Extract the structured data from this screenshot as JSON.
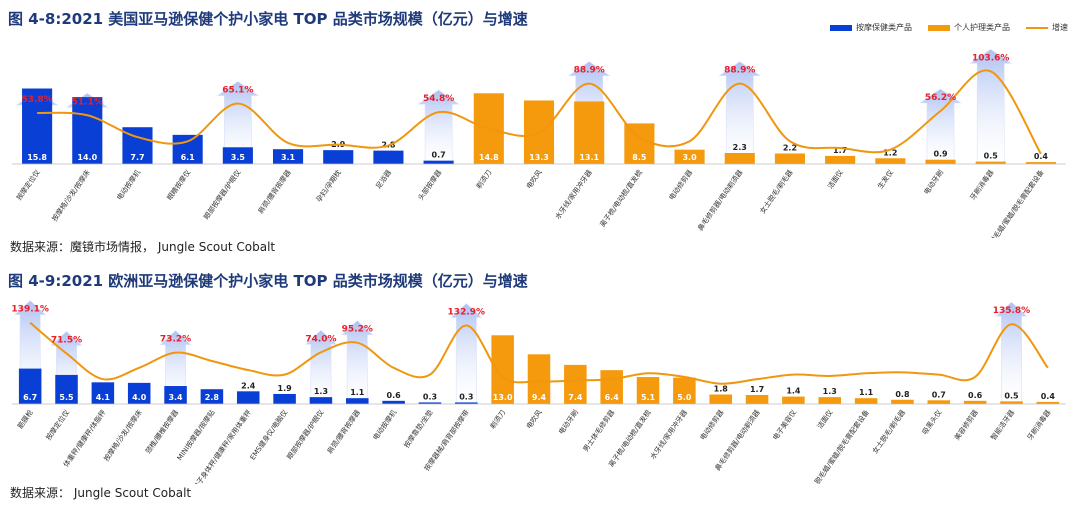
{
  "charts": [
    {
      "title_prefix": "图 4-8:",
      "title_text": "2021 美国亚马逊保健个护小家电 TOP 品类市场规模（亿元）与增速",
      "source": "数据来源：魔镜市场情报， Jungle Scout Cobalt",
      "legend": [
        "按摩保健类产品",
        "个人护理类产品",
        "增速"
      ],
      "colors": {
        "blue": "#0a3fd6",
        "orange": "#f59a0c",
        "line": "#f0960f",
        "growth_label": "#e8202a"
      }
    },
    {
      "title_prefix": "图 4-9:",
      "title_text": "2021 欧洲亚马逊保健个护小家电 TOP 品类市场规模（亿元）与增速",
      "source": "数据来源： Jungle Scout Cobalt"
    }
  ],
  "chart_data": [
    {
      "type": "bar",
      "categories": [
        "按摩定位仪",
        "按摩椅/沙发/按摩床",
        "电动按摩机",
        "眼睛按摩仪",
        "眼部按摩器/护眼仪",
        "肩颈/腰背按摩器",
        "孕妇/孕期枕",
        "足浴器",
        "头部按摩器",
        "剃须刀",
        "电吹风",
        "水牙线/家用冲牙器",
        "离子梳/电动梳/直发梳",
        "电动修剪器",
        "鼻毛修剪器/电动剃须器",
        "女士脱毛/剃毛器",
        "洁面仪",
        "生发仪",
        "电动牙刷",
        "牙刷消毒器",
        "脱毛蜡/蜜蜡/脱毛膏配套设备"
      ],
      "values": [
        15.8,
        14.0,
        7.7,
        6.1,
        3.5,
        3.1,
        2.9,
        2.8,
        0.7,
        14.8,
        13.3,
        13.1,
        8.5,
        3.0,
        2.3,
        2.2,
        1.7,
        1.2,
        0.9,
        0.5,
        0.4
      ],
      "groups": [
        "按摩保健类产品",
        "按摩保健类产品",
        "按摩保健类产品",
        "按摩保健类产品",
        "按摩保健类产品",
        "按摩保健类产品",
        "按摩保健类产品",
        "按摩保健类产品",
        "按摩保健类产品",
        "个人护理类产品",
        "个人护理类产品",
        "个人护理类产品",
        "个人护理类产品",
        "个人护理类产品",
        "个人护理类产品",
        "个人护理类产品",
        "个人护理类产品",
        "个人护理类产品",
        "个人护理类产品",
        "个人护理类产品",
        "个人护理类产品"
      ],
      "growth": [
        53.8,
        51.1,
        25,
        20,
        65.1,
        18,
        16,
        15,
        54.8,
        35,
        30,
        88.9,
        25,
        20,
        88.9,
        20,
        12,
        10,
        56.2,
        103.6,
        5
      ],
      "growth_labels": [
        "53.8%",
        "51.1%",
        "",
        "",
        "65.1%",
        "",
        "",
        "",
        "54.8%",
        "",
        "",
        "88.9%",
        "",
        "",
        "88.9%",
        "",
        "",
        "",
        "56.2%",
        "103.6%",
        ""
      ],
      "ylim": [
        0,
        18
      ]
    },
    {
      "type": "bar",
      "categories": [
        "筋膜枪",
        "按摩定位仪",
        "体重秤/健康秤/体脂秤",
        "按摩椅/沙发/按摩床",
        "颈椎/腰椎按摩器",
        "MINI按摩器/按摩贴",
        "电子身体秤/健康秤/家用体重秤",
        "EMS健身仪/电脑仪",
        "眼部按摩器/护眼仪",
        "肩颈/腰背按摩器",
        "电动按摩机",
        "按摩靠垫/坐垫",
        "按摩器械/肩背部按摩带",
        "剃须刀",
        "电吹风",
        "电动牙刷",
        "男士体毛修剪器",
        "离子梳/电动梳/直发梳",
        "水牙线/家用冲牙器",
        "电动修剪器",
        "鼻毛修剪器/电动剃须器",
        "电子美容仪",
        "洁面仪",
        "脱毛蜡/蜜蜡/脱毛膏配套设备",
        "女士脱毛/剃毛器",
        "吸黑头仪",
        "美容修剪器",
        "智能洁牙器",
        "牙刷消毒器"
      ],
      "values": [
        6.7,
        5.5,
        4.1,
        4.0,
        3.4,
        2.8,
        2.4,
        1.9,
        1.3,
        1.1,
        0.6,
        0.3,
        0.3,
        13.0,
        9.4,
        7.4,
        6.4,
        5.1,
        5.0,
        1.8,
        1.7,
        1.4,
        1.3,
        1.1,
        0.8,
        0.7,
        0.6,
        0.5,
        0.4
      ],
      "groups": [
        "按摩保健类产品",
        "按摩保健类产品",
        "按摩保健类产品",
        "按摩保健类产品",
        "按摩保健类产品",
        "按摩保健类产品",
        "按摩保健类产品",
        "按摩保健类产品",
        "按摩保健类产品",
        "按摩保健类产品",
        "按摩保健类产品",
        "按摩保健类产品",
        "按摩保健类产品",
        "个人护理类产品",
        "个人护理类产品",
        "个人护理类产品",
        "个人护理类产品",
        "个人护理类产品",
        "个人护理类产品",
        "个人护理类产品",
        "个人护理类产品",
        "个人护理类产品",
        "个人护理类产品",
        "个人护理类产品",
        "个人护理类产品",
        "个人护理类产品",
        "个人护理类产品",
        "个人护理类产品",
        "个人护理类产品"
      ],
      "growth": [
        139.1,
        71.5,
        15,
        40,
        73.2,
        55,
        35,
        25,
        74.0,
        95.2,
        40,
        25,
        132.9,
        20,
        10,
        12,
        15,
        28,
        20,
        5,
        15,
        25,
        22,
        28,
        30,
        25,
        20,
        135.8,
        40
      ],
      "growth_labels": [
        "139.1%",
        "71.5%",
        "",
        "",
        "73.2%",
        "",
        "",
        "",
        "74.0%",
        "95.2%",
        "",
        "",
        "132.9%",
        "",
        "",
        "",
        "",
        "",
        "",
        "",
        "",
        "",
        "",
        "",
        "",
        "",
        "",
        "135.8%",
        ""
      ],
      "ylim": [
        0,
        14
      ]
    }
  ]
}
